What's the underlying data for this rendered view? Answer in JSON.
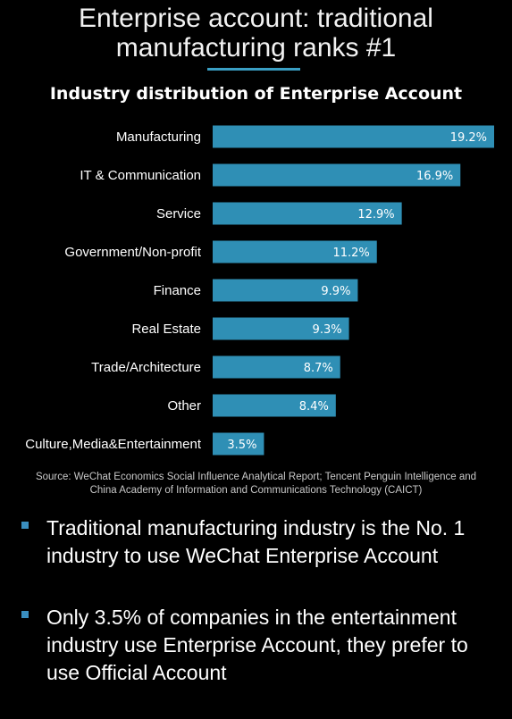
{
  "headline": {
    "line1": "Enterprise account: traditional",
    "line2": "manufacturing ranks #1"
  },
  "colors": {
    "bar": "#2f8fb5",
    "accent": "#3a9fc4",
    "background": "#000000"
  },
  "chart_data": {
    "type": "bar",
    "orientation": "horizontal",
    "title": "Industry distribution of Enterprise Account",
    "categories": [
      "Manufacturing",
      "IT & Communication",
      "Service",
      "Government/Non-profit",
      "Finance",
      "Real Estate",
      "Trade/Architecture",
      "Other",
      "Culture,Media&Entertainment"
    ],
    "values": [
      19.2,
      16.9,
      12.9,
      11.2,
      9.9,
      9.3,
      8.7,
      8.4,
      3.5
    ],
    "data_labels": [
      "19.2%",
      "16.9%",
      "12.9%",
      "11.2%",
      "9.9%",
      "9.3%",
      "8.7%",
      "8.4%",
      "3.5%"
    ],
    "grid": false,
    "legend": "none"
  },
  "source": {
    "line1": "Source: WeChat Economics Social Influence Analytical Report; Tencent Penguin Intelligence and",
    "line2": "China Academy of Information and Communications Technology (CAICT)"
  },
  "bullets": [
    {
      "line1": "Traditional manufacturing industry is the No. 1",
      "line2": "industry to use WeChat Enterprise Account",
      "line3": ""
    },
    {
      "line1": "Only 3.5% of companies in the entertainment",
      "line2": "industry use Enterprise Account, they prefer to",
      "line3": "use Official Account"
    }
  ]
}
